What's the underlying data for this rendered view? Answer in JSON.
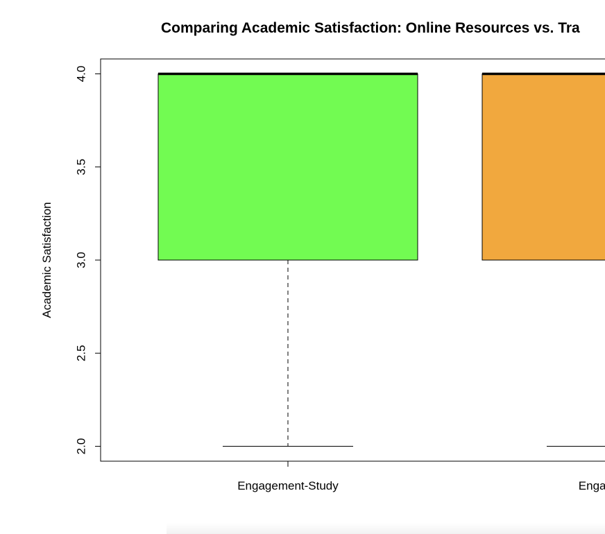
{
  "chart_data": {
    "type": "box",
    "title": "Comparing Academic Satisfaction: Online Resources vs. Tra",
    "xlabel": "",
    "ylabel": "Academic Satisfaction",
    "ylim": [
      1.92,
      4.08
    ],
    "yticks": [
      2.0,
      2.5,
      3.0,
      3.5,
      4.0
    ],
    "ytick_labels": [
      "2.0",
      "2.5",
      "3.0",
      "3.5",
      "4.0"
    ],
    "grid": false,
    "categories": [
      "Engagement-Study",
      "Engagement"
    ],
    "boxes": [
      {
        "category": "Engagement-Study",
        "whisker_low": 2.0,
        "q1": 3.0,
        "median": 4.0,
        "q3": 4.0,
        "whisker_high": 4.0,
        "color": "#72fb52"
      },
      {
        "category": "Engagement",
        "whisker_low": 2.0,
        "q1": 3.0,
        "median": 4.0,
        "q3": 4.0,
        "whisker_high": 4.0,
        "color": "#f1a83e"
      }
    ]
  }
}
